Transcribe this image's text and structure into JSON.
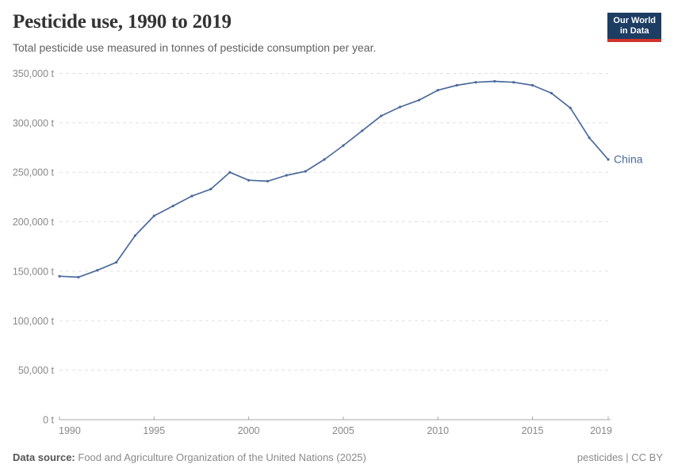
{
  "header": {
    "title": "Pesticide use, 1990 to 2019",
    "subtitle": "Total pesticide use measured in tonnes of pesticide consumption per year.",
    "logo": {
      "line1": "Our World",
      "line2": "in Data"
    }
  },
  "footer": {
    "source_label": "Data source:",
    "source_text": "Food and Agriculture Organization of the United Nations (2025)",
    "license": "pesticides | CC BY"
  },
  "colors": {
    "series_blue": "#4C6A9C",
    "grid": "#e0e0e0",
    "axis": "#a8a8a8",
    "tick_text": "#888888",
    "logo_navy": "#1d3d63",
    "logo_red": "#cf342b"
  },
  "chart_data": {
    "type": "line",
    "title": "Pesticide use, 1990 to 2019",
    "xlabel": "",
    "ylabel": "",
    "x": [
      1990,
      1991,
      1992,
      1993,
      1994,
      1995,
      1996,
      1997,
      1998,
      1999,
      2000,
      2001,
      2002,
      2003,
      2004,
      2005,
      2006,
      2007,
      2008,
      2009,
      2010,
      2011,
      2012,
      2013,
      2014,
      2015,
      2016,
      2017,
      2018,
      2019
    ],
    "series": [
      {
        "name": "China",
        "values": [
          145000,
          144000,
          151000,
          159000,
          186000,
          206000,
          216000,
          226000,
          233000,
          250000,
          242000,
          241000,
          247000,
          251000,
          263000,
          277000,
          292000,
          307000,
          316000,
          323000,
          333000,
          338000,
          341000,
          342000,
          341000,
          338000,
          330000,
          315000,
          285000,
          263000
        ]
      }
    ],
    "ylim": [
      0,
      350000
    ],
    "yticks": [
      {
        "value": 0,
        "label": "0 t"
      },
      {
        "value": 50000,
        "label": "50,000 t"
      },
      {
        "value": 100000,
        "label": "100,000 t"
      },
      {
        "value": 150000,
        "label": "150,000 t"
      },
      {
        "value": 200000,
        "label": "200,000 t"
      },
      {
        "value": 250000,
        "label": "250,000 t"
      },
      {
        "value": 300000,
        "label": "300,000 t"
      },
      {
        "value": 350000,
        "label": "350,000 t"
      }
    ],
    "xticks": [
      1990,
      1995,
      2000,
      2005,
      2010,
      2015,
      2019
    ],
    "grid": "horizontal-dashed",
    "legend_position": "end-of-line"
  }
}
